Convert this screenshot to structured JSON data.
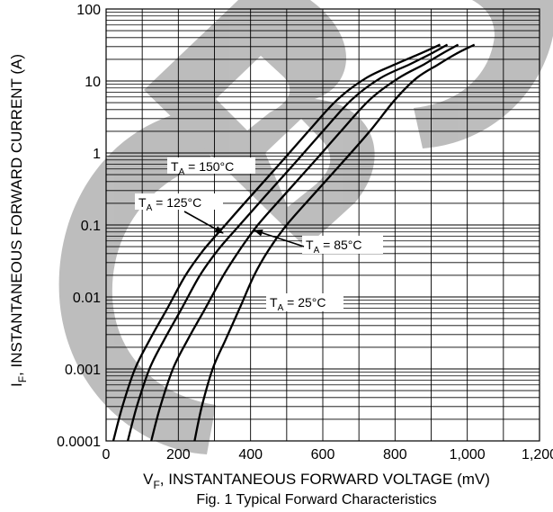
{
  "chart_data": {
    "type": "line",
    "title": "",
    "caption": "Fig. 1 Typical Forward Characteristics",
    "xlabel": {
      "main": "V",
      "sub": "F",
      "rest": ", INSTANTANEOUS FORWARD VOLTAGE (mV)"
    },
    "ylabel": {
      "main": "I",
      "sub": "F",
      "rest": ", INSTANTANEOUS FORWARD CURRENT (A)"
    },
    "xlim": [
      0,
      1200
    ],
    "ylim": [
      0.0001,
      100
    ],
    "yscale": "log",
    "grid": true,
    "x_ticks": [
      {
        "value": 0,
        "label": "0"
      },
      {
        "value": 200,
        "label": "200"
      },
      {
        "value": 400,
        "label": "400"
      },
      {
        "value": 600,
        "label": "600"
      },
      {
        "value": 800,
        "label": "800"
      },
      {
        "value": 1000,
        "label": "1,000"
      },
      {
        "value": 1200,
        "label": "1,200"
      }
    ],
    "y_ticks": [
      {
        "value": 0.0001,
        "label": "0.0001"
      },
      {
        "value": 0.001,
        "label": "0.001"
      },
      {
        "value": 0.01,
        "label": "0.01"
      },
      {
        "value": 0.1,
        "label": "0.1"
      },
      {
        "value": 1,
        "label": "1"
      },
      {
        "value": 10,
        "label": "10"
      },
      {
        "value": 100,
        "label": "100"
      }
    ],
    "series": [
      {
        "name": {
          "main": "T",
          "sub": "A",
          "rest": " = 150°C"
        },
        "x": [
          20,
          45,
          80,
          120,
          170,
          220,
          270,
          330,
          400,
          480,
          560,
          640,
          720,
          800,
          870,
          925
        ],
        "y": [
          0.0001,
          0.0003,
          0.001,
          0.0025,
          0.007,
          0.02,
          0.045,
          0.1,
          0.25,
          0.7,
          2,
          5.5,
          11,
          17,
          24,
          32
        ]
      },
      {
        "name": {
          "main": "T",
          "sub": "A",
          "rest": " = 125°C"
        },
        "x": [
          60,
          85,
          120,
          160,
          210,
          260,
          310,
          370,
          440,
          520,
          600,
          680,
          760,
          840,
          900,
          945
        ],
        "y": [
          0.0001,
          0.0003,
          0.001,
          0.0025,
          0.007,
          0.02,
          0.045,
          0.1,
          0.25,
          0.7,
          2,
          5.5,
          11,
          17,
          24,
          32
        ]
      },
      {
        "name": {
          "main": "T",
          "sub": "A",
          "rest": " = 85°C"
        },
        "x": [
          125,
          150,
          185,
          225,
          275,
          325,
          370,
          420,
          490,
          570,
          650,
          730,
          810,
          880,
          930,
          975
        ],
        "y": [
          0.0001,
          0.0003,
          0.001,
          0.0025,
          0.007,
          0.02,
          0.045,
          0.1,
          0.25,
          0.7,
          2,
          5.5,
          11,
          17,
          24,
          32
        ]
      },
      {
        "name": {
          "main": "T",
          "sub": "A",
          "rest": " = 25°C"
        },
        "x": [
          245,
          265,
          295,
          330,
          370,
          410,
          450,
          500,
          570,
          650,
          730,
          800,
          860,
          920,
          970,
          1020
        ],
        "y": [
          0.0001,
          0.0003,
          0.001,
          0.0025,
          0.007,
          0.02,
          0.045,
          0.1,
          0.25,
          0.7,
          2,
          5.5,
          11,
          17,
          24,
          32
        ]
      }
    ],
    "watermark": "CB"
  }
}
